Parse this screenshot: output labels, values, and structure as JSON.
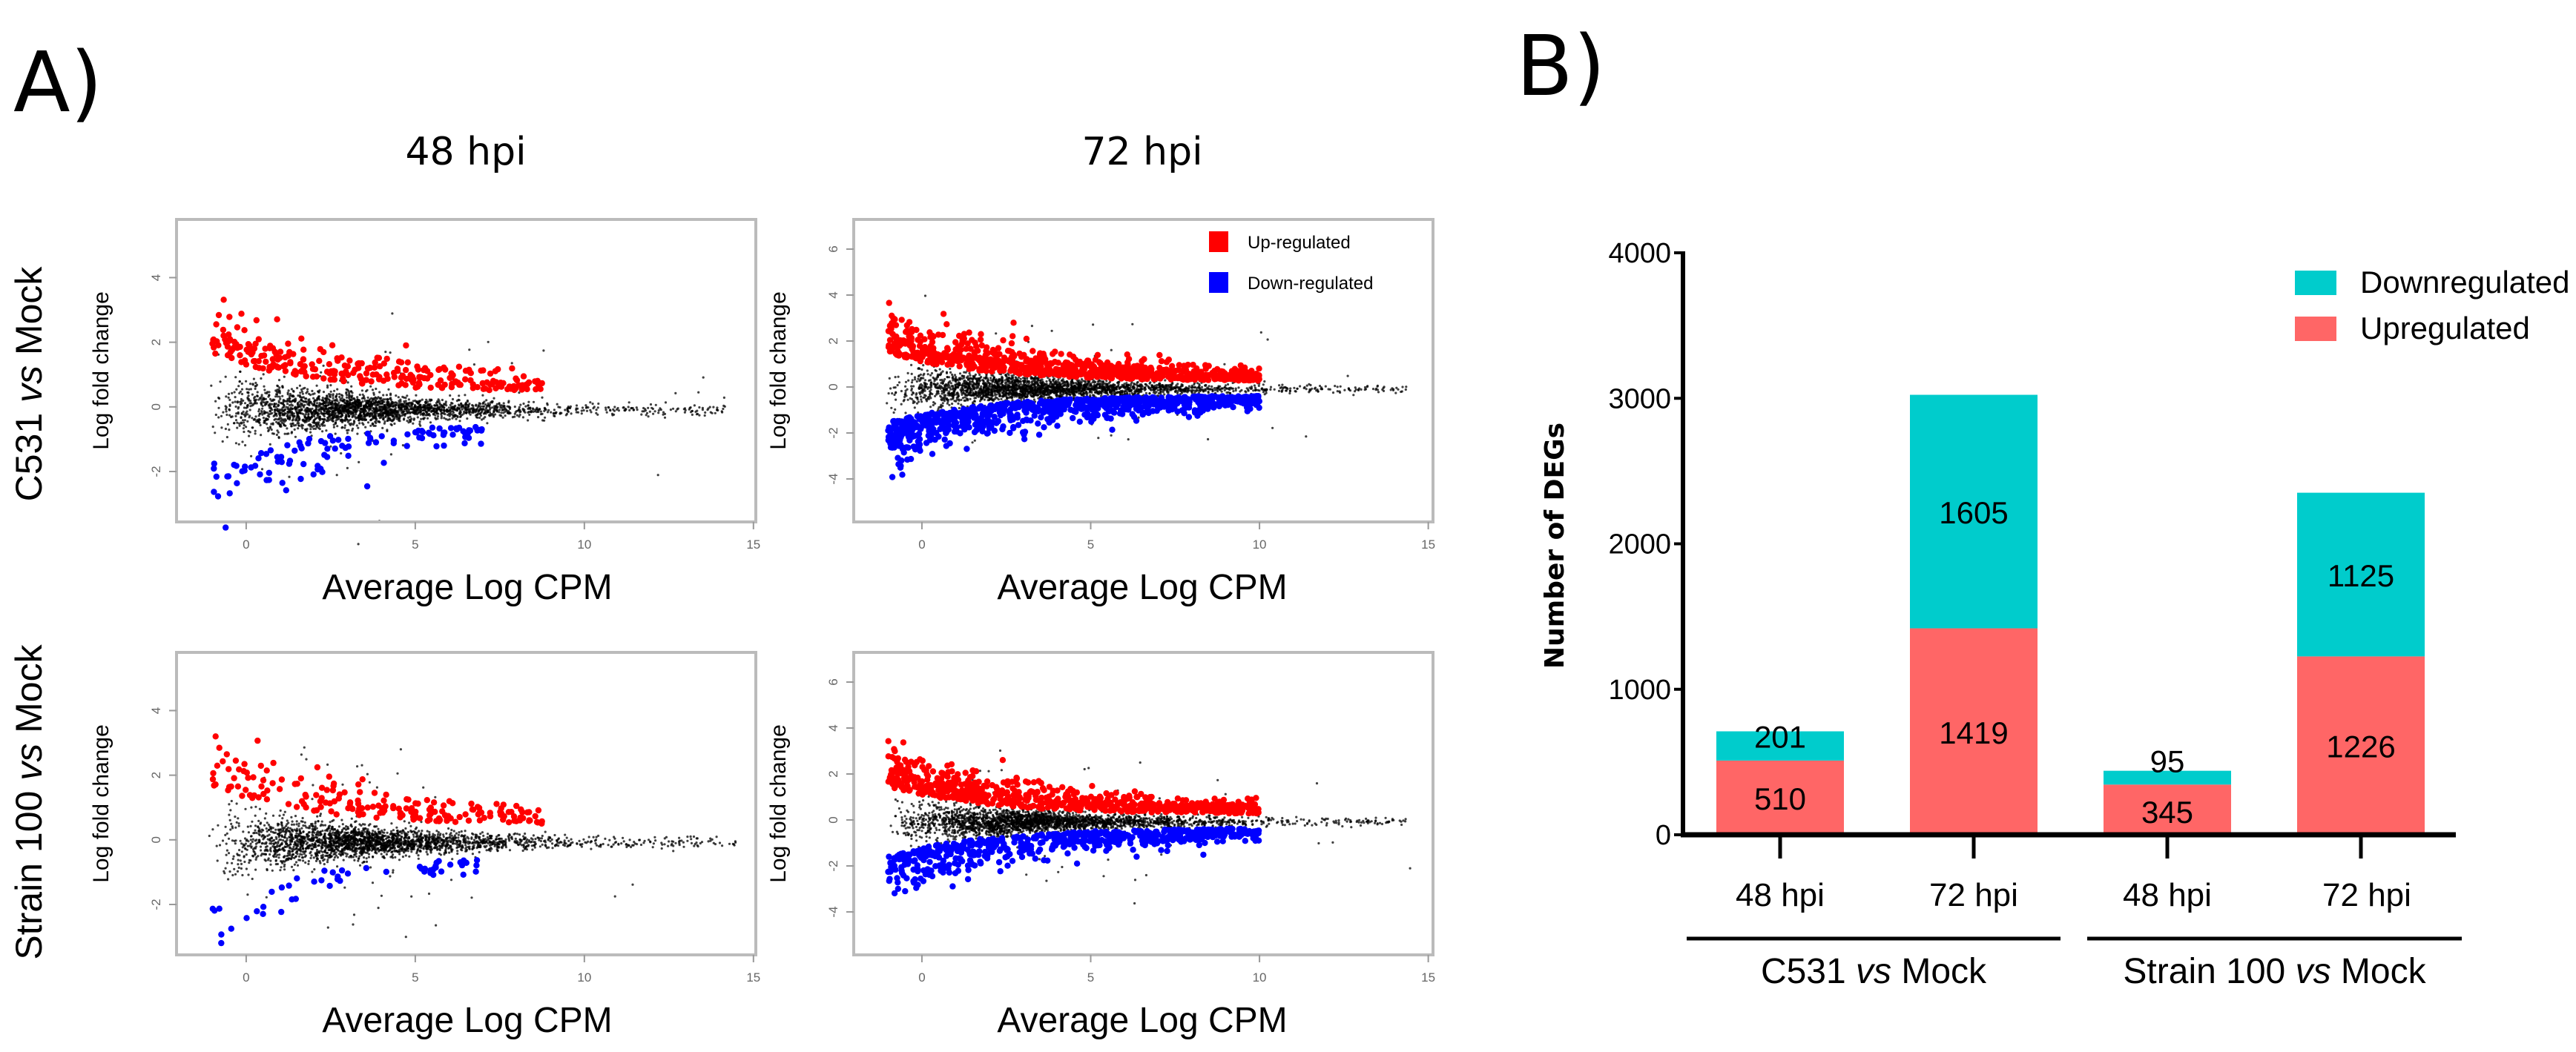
{
  "panel_a": {
    "label": "A)",
    "col_titles": [
      "48 hpi",
      "72 hpi"
    ],
    "row_titles": [
      "C531 vs Mock",
      "Strain 100 vs Mock"
    ],
    "row_titles_parts": [
      [
        "C531 ",
        "vs",
        " Mock"
      ],
      [
        "Strain 100 ",
        "vs",
        " Mock"
      ]
    ]
  },
  "panel_b": {
    "label": "B)"
  },
  "chart_data": [
    {
      "type": "scatter",
      "id": "ma-c531-48",
      "title": "C531 vs Mock, 48 hpi",
      "xlabel": "Average Log CPM",
      "ylabel": "Log fold change",
      "xlim": [
        -2.06,
        15.07
      ],
      "ylim": [
        -3.56,
        5.8
      ],
      "xticks": [
        "0",
        "5",
        "10",
        "15"
      ],
      "xtick_values": [
        0,
        5,
        10,
        15
      ],
      "yticks": [
        "-2",
        "0",
        "2",
        "4"
      ],
      "ytick_values": [
        -2,
        0,
        2,
        4
      ],
      "series": [
        {
          "name": "Not significant",
          "color": "#000000"
        },
        {
          "name": "Up-regulated",
          "color": "#ff0000",
          "count": 510
        },
        {
          "name": "Down-regulated",
          "color": "#0000ff",
          "count": 201
        }
      ]
    },
    {
      "type": "scatter",
      "id": "ma-c531-72",
      "title": "C531 vs Mock, 72 hpi",
      "xlabel": "Average Log CPM",
      "ylabel": "Log fold change",
      "xlim": [
        -2.02,
        15.14
      ],
      "ylim": [
        -5.87,
        7.29
      ],
      "xticks": [
        "0",
        "5",
        "10",
        "15"
      ],
      "xtick_values": [
        0,
        5,
        10,
        15
      ],
      "yticks": [
        "-4",
        "-2",
        "0",
        "2",
        "4",
        "6"
      ],
      "ytick_values": [
        -4,
        -2,
        0,
        2,
        4,
        6
      ],
      "legend": [
        "Up-regulated",
        "Down-regulated"
      ],
      "legend_placement": "top-right",
      "series": [
        {
          "name": "Not significant",
          "color": "#000000"
        },
        {
          "name": "Up-regulated",
          "color": "#ff0000",
          "count": 1419
        },
        {
          "name": "Down-regulated",
          "color": "#0000ff",
          "count": 1605
        }
      ]
    },
    {
      "type": "scatter",
      "id": "ma-strain100-48",
      "title": "Strain 100 vs Mock, 48 hpi",
      "xlabel": "Average Log CPM",
      "ylabel": "Log fold change",
      "xlim": [
        -2.06,
        15.07
      ],
      "ylim": [
        -3.56,
        5.8
      ],
      "xticks": [
        "0",
        "5",
        "10",
        "15"
      ],
      "xtick_values": [
        0,
        5,
        10,
        15
      ],
      "yticks": [
        "-2",
        "0",
        "2",
        "4"
      ],
      "ytick_values": [
        -2,
        0,
        2,
        4
      ],
      "series": [
        {
          "name": "Not significant",
          "color": "#000000"
        },
        {
          "name": "Up-regulated",
          "color": "#ff0000",
          "count": 345
        },
        {
          "name": "Down-regulated",
          "color": "#0000ff",
          "count": 95
        }
      ]
    },
    {
      "type": "scatter",
      "id": "ma-strain100-72",
      "title": "Strain 100 vs Mock, 72 hpi",
      "xlabel": "Average Log CPM",
      "ylabel": "Log fold change",
      "xlim": [
        -2.02,
        15.14
      ],
      "ylim": [
        -5.87,
        7.29
      ],
      "xticks": [
        "0",
        "5",
        "10",
        "15"
      ],
      "xtick_values": [
        0,
        5,
        10,
        15
      ],
      "yticks": [
        "-4",
        "-2",
        "0",
        "2",
        "4",
        "6"
      ],
      "ytick_values": [
        -4,
        -2,
        0,
        2,
        4,
        6
      ],
      "series": [
        {
          "name": "Not significant",
          "color": "#000000"
        },
        {
          "name": "Up-regulated",
          "color": "#ff0000",
          "count": 1226
        },
        {
          "name": "Down-regulated",
          "color": "#0000ff",
          "count": 1125
        }
      ]
    },
    {
      "type": "bar",
      "stacked": true,
      "title": "",
      "ylabel": "Number of DEGs",
      "xlabel": "",
      "ylim": [
        0,
        4000
      ],
      "yticks": [
        "0",
        "1000",
        "2000",
        "3000",
        "4000"
      ],
      "ytick_values": [
        0,
        1000,
        2000,
        3000,
        4000
      ],
      "categories": [
        "48 hpi",
        "72 hpi",
        "48 hpi",
        "72 hpi"
      ],
      "groups": [
        {
          "label_parts": [
            "C531 ",
            "vs",
            " Mock"
          ],
          "categories": [
            0,
            1
          ]
        },
        {
          "label_parts": [
            "Strain 100 ",
            "vs",
            " Mock"
          ],
          "categories": [
            2,
            3
          ]
        }
      ],
      "legend_placement": "top-right",
      "series": [
        {
          "name": "Upregulated",
          "color": "#ff6666",
          "values": [
            510,
            1419,
            345,
            1226
          ]
        },
        {
          "name": "Downregulated",
          "color": "#00cccc",
          "values": [
            201,
            1605,
            95,
            1125
          ]
        }
      ],
      "legend_order": [
        "Downregulated",
        "Upregulated"
      ]
    }
  ]
}
